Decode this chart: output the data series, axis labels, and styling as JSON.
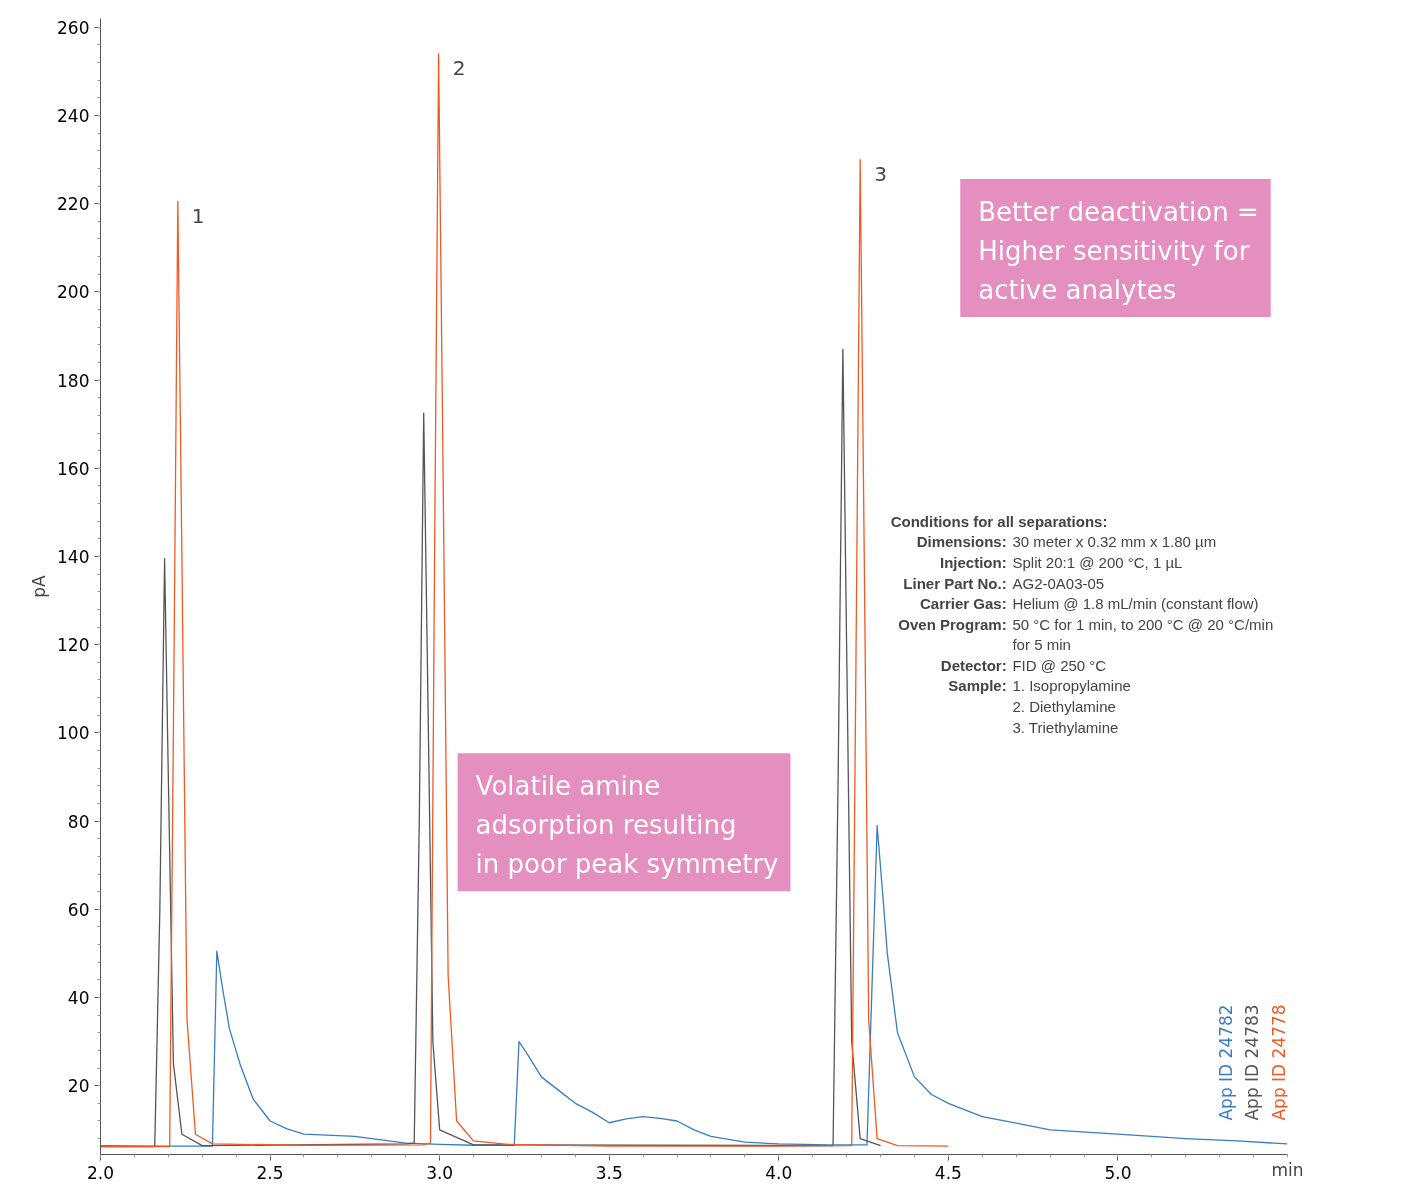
{
  "chart_data": {
    "type": "line",
    "xlabel": "min",
    "ylabel": "pA",
    "xlim": [
      2.0,
      5.5
    ],
    "ylim": [
      4.4,
      262
    ],
    "xticks": [
      {
        "value": 2,
        "label": "2.0"
      },
      {
        "value": 2.5,
        "label": "2.5"
      },
      {
        "value": 3,
        "label": "3.0"
      },
      {
        "value": 3.5,
        "label": "3.5"
      },
      {
        "value": 4,
        "label": "4.0"
      },
      {
        "value": 4.5,
        "label": "4.5"
      },
      {
        "value": 5,
        "label": "5.0"
      }
    ],
    "yticks": [
      20,
      40,
      60,
      80,
      100,
      120,
      140,
      160,
      180,
      200,
      220,
      240,
      260
    ],
    "grid": false,
    "legend": false,
    "marker": "none",
    "line_style": "solid",
    "series": [
      {
        "name": "App ID 24782",
        "color": "#3a7dc4",
        "x": [
          2.0,
          2.2,
          2.33,
          2.343,
          2.36,
          2.38,
          2.411,
          2.45,
          2.5,
          2.55,
          2.6,
          2.75,
          2.9,
          3.0,
          3.1,
          3.22,
          3.234,
          3.26,
          3.3,
          3.35,
          3.4,
          3.45,
          3.5,
          3.55,
          3.6,
          3.65,
          3.7,
          3.75,
          3.8,
          3.9,
          4.0,
          4.15,
          4.26,
          4.29,
          4.31,
          4.32,
          4.35,
          4.4,
          4.45,
          4.5,
          4.6,
          4.7,
          4.8,
          5.0,
          5.2,
          5.35,
          5.5
        ],
        "values": [
          6.4,
          6.3,
          6.3,
          50.5,
          42,
          33,
          25,
          17,
          12,
          10.2,
          9,
          8.5,
          7,
          6.7,
          6.5,
          6.5,
          30,
          27,
          22,
          19,
          16,
          14,
          11.6,
          12.5,
          13,
          12.6,
          12,
          10,
          8.5,
          7.2,
          6.8,
          6.6,
          6.6,
          79,
          60,
          50,
          32,
          22,
          18,
          16,
          13,
          11.5,
          10,
          9,
          8,
          7.5,
          6.8
        ]
      },
      {
        "name": "App ID 24783",
        "color": "#555555",
        "x": [
          2.0,
          2.16,
          2.175,
          2.189,
          2.2,
          2.215,
          2.24,
          2.3,
          2.9,
          2.925,
          2.94,
          2.953,
          2.965,
          2.98,
          3.0,
          3.1,
          4.16,
          4.175,
          4.189,
          4.2,
          4.215,
          4.24,
          4.3
        ],
        "values": [
          6.2,
          6.2,
          60,
          139.5,
          90,
          25,
          9,
          6.4,
          6.8,
          7,
          80,
          172.5,
          110,
          30,
          10,
          6.6,
          6.4,
          90,
          187,
          120,
          30,
          8,
          6.4
        ]
      },
      {
        "name": "App ID 24778",
        "color": "#f05a24",
        "x": [
          2.0,
          2.204,
          2.216,
          2.228,
          2.24,
          2.255,
          2.28,
          2.33,
          2.6,
          2.95,
          2.973,
          2.985,
          2.997,
          3.01,
          3.025,
          3.05,
          3.1,
          3.2,
          3.5,
          4.0,
          4.215,
          4.228,
          4.24,
          4.252,
          4.265,
          4.29,
          4.35,
          4.5
        ],
        "values": [
          6.2,
          6.2,
          110,
          220.5,
          140,
          35,
          9,
          6.8,
          6.5,
          6.6,
          7,
          140,
          254,
          160,
          45,
          12,
          7.5,
          6.7,
          6.3,
          6.3,
          6.4,
          120,
          230,
          140,
          35,
          8,
          6.4,
          6.3
        ]
      }
    ],
    "annotations": [
      "Better deactivation =\nHigher sensitivity for\nactive analytes",
      "Volatile amine\nadsorption resulting\nin poor peak symmetry",
      {
        "text": "1",
        "x": 2.228,
        "y": 220.5
      },
      {
        "text": "2",
        "x": 2.997,
        "y": 254
      },
      {
        "text": "3",
        "x": 4.24,
        "y": 230
      },
      "Conditions for all separations:",
      "Dimensions: 30 meter x 0.32 mm x 1.80 µm",
      "Injection: Split 20:1 @ 200 °C, 1 µL",
      "Liner Part No.: AG2-0A03-05",
      "Carrier Gas: Helium @ 1.8 mL/min (constant flow)",
      "Oven Program: 50 °C for 1 min, to 200 °C @ 20 °C/min",
      "for 5 min",
      "Detector: FID @ 250 °C",
      "Sample: 1. Isopropylamine",
      "2. Diethylamine",
      "3. Triethylamine"
    ]
  }
}
